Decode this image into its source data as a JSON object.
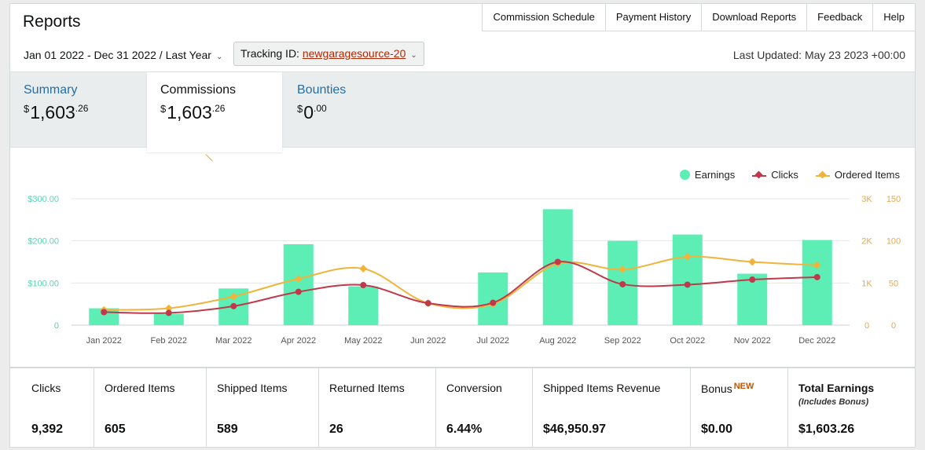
{
  "header": {
    "title": "Reports",
    "nav": [
      "Commission Schedule",
      "Payment History",
      "Download Reports",
      "Feedback",
      "Help"
    ],
    "date_range": "Jan 01 2022 - Dec 31 2022 / Last Year",
    "tracking_label": "Tracking ID:",
    "tracking_id": "newgaragesource-20",
    "last_updated": "Last Updated: May 23 2023 +00:00"
  },
  "tabs": [
    {
      "label": "Summary",
      "currency": "$",
      "whole": "1,603",
      "cents": ".26",
      "active": false
    },
    {
      "label": "Commissions",
      "currency": "$",
      "whole": "1,603",
      "cents": ".26",
      "active": true
    },
    {
      "label": "Bounties",
      "currency": "$",
      "whole": "0",
      "cents": ".00",
      "active": false
    }
  ],
  "colors": {
    "earnings": "#5ceeb5",
    "clicks": "#c0394a",
    "ordered": "#f0b43c",
    "left_axis": "#5fd1b4",
    "right_axis": "#e9a84a"
  },
  "chart_data": {
    "type": "bar",
    "categories": [
      "Jan 2022",
      "Feb 2022",
      "Mar 2022",
      "Apr 2022",
      "May 2022",
      "Jun 2022",
      "Jul 2022",
      "Aug 2022",
      "Sep 2022",
      "Oct 2022",
      "Nov 2022",
      "Dec 2022"
    ],
    "series": [
      {
        "name": "Earnings",
        "type": "bar",
        "axis": "left",
        "values": [
          40,
          27,
          87,
          192,
          92,
          0,
          125,
          275,
          200,
          215,
          122,
          202
        ]
      },
      {
        "name": "Clicks",
        "type": "line",
        "axis": "right1",
        "values": [
          310,
          290,
          450,
          790,
          950,
          520,
          530,
          1500,
          970,
          960,
          1080,
          1140
        ]
      },
      {
        "name": "Ordered Items",
        "type": "line",
        "axis": "right2",
        "values": [
          18,
          20,
          34,
          55,
          67,
          26,
          25,
          73,
          66,
          81,
          75,
          71
        ]
      }
    ],
    "y_left": {
      "ticks": [
        "0",
        "$100.00",
        "$200.00",
        "$300.00"
      ],
      "range": [
        0,
        300
      ]
    },
    "y_right1": {
      "ticks": [
        "0",
        "1K",
        "2K",
        "3K"
      ],
      "range": [
        0,
        3000
      ]
    },
    "y_right2": {
      "ticks": [
        "0",
        "50",
        "100",
        "150"
      ],
      "range": [
        0,
        150
      ]
    },
    "legend_position": "top-right",
    "grid": true
  },
  "stats": [
    {
      "label": "Clicks",
      "value": "9,392"
    },
    {
      "label": "Ordered Items",
      "value": "605"
    },
    {
      "label": "Shipped Items",
      "value": "589"
    },
    {
      "label": "Returned Items",
      "value": "26"
    },
    {
      "label": "Conversion",
      "value": "6.44%"
    },
    {
      "label": "Shipped Items Revenue",
      "value": "$46,950.97"
    },
    {
      "label": "Bonus",
      "badge": "NEW",
      "value": "$0.00"
    },
    {
      "label": "Total Earnings",
      "sub": "(Includes Bonus)",
      "value": "$1,603.26"
    }
  ]
}
